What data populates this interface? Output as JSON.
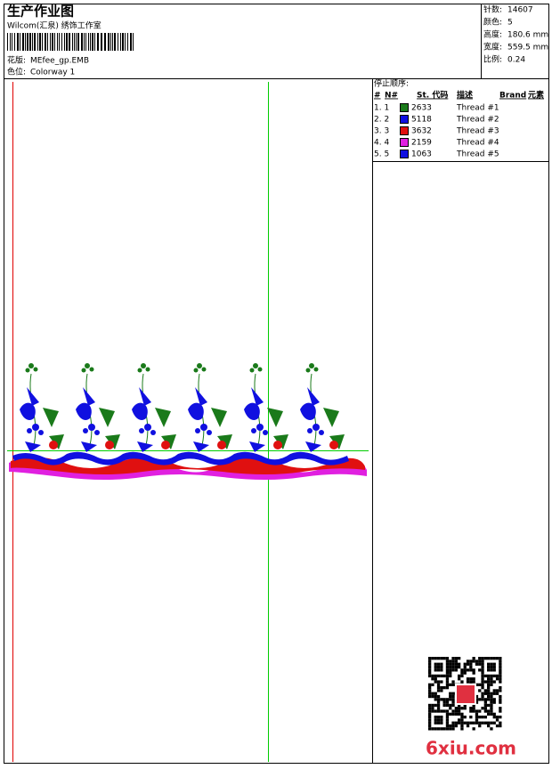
{
  "header": {
    "title": "生产作业图",
    "company": "Wilcom(汇泉) 绣饰工作室",
    "design_label": "花版:",
    "design": "MEfee_gp.EMB",
    "colorway_label": "色位:",
    "colorway": "Colorway 1"
  },
  "stats": [
    {
      "label": "针数:",
      "value": "14607"
    },
    {
      "label": "颜色:",
      "value": "5"
    },
    {
      "label": "高度:",
      "value": "180.6 mm"
    },
    {
      "label": "宽度:",
      "value": "559.5 mm"
    },
    {
      "label": "比例:",
      "value": "0.24"
    }
  ],
  "stop_sequence": {
    "title": "停止顺序:",
    "columns": [
      "#",
      "N#",
      "St. 代码",
      "描述",
      "Brand",
      "元素"
    ],
    "rows": [
      {
        "index": "1. 1",
        "color": "#1a7a1a",
        "code": "2633",
        "description": "Thread #1"
      },
      {
        "index": "2. 2",
        "color": "#1010e0",
        "code": "5118",
        "description": "Thread #2"
      },
      {
        "index": "3. 3",
        "color": "#e01010",
        "code": "3632",
        "description": "Thread #3"
      },
      {
        "index": "4. 4",
        "color": "#e020e0",
        "code": "2159",
        "description": "Thread #4"
      },
      {
        "index": "5. 5",
        "color": "#1010e0",
        "code": "1063",
        "description": "Thread #5"
      }
    ]
  },
  "watermark": "6xiu.com"
}
